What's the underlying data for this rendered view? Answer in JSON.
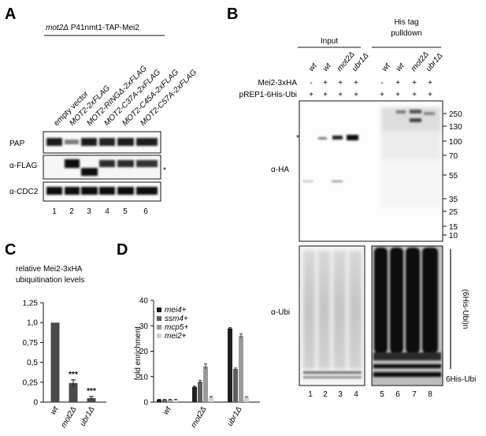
{
  "panels": {
    "A": {
      "letter": "A",
      "strain_genotype": "mot2Δ",
      "strain_construct": " P41nmt1-TAP-Mei2",
      "lanes": [
        "empty vector",
        "MOT2-2xFLAG",
        "MOT2-RINGΔ-2xFLAG",
        "MOT2-C37A-2xFLAG",
        "MOT2-C45A-2xFLAG",
        "MOT2-C57A-2xFLAG"
      ],
      "lane_numbers": [
        "1",
        "2",
        "3",
        "4",
        "5",
        "6"
      ],
      "blots": [
        {
          "label": "PAP"
        },
        {
          "label": "α-FLAG"
        },
        {
          "label": "α-CDC2"
        }
      ],
      "asterisk": "*"
    },
    "B": {
      "letter": "B",
      "group_input": "Input",
      "group_pulldown_line1": "His tag",
      "group_pulldown_line2": "pulldown",
      "lane_genotypes": [
        "wt",
        "wt",
        "mot2Δ",
        "ubr1Δ",
        "wt",
        "wt",
        "mot2Δ",
        "ubr1Δ"
      ],
      "rows": [
        {
          "label": "Mei2-3xHA",
          "marks": [
            "-",
            "+",
            "+",
            "+",
            "-",
            "+",
            "+",
            "+"
          ]
        },
        {
          "label": "pREP1-6His-Ubi",
          "marks": [
            "+",
            "+",
            "+",
            "+",
            "+",
            "+",
            "+",
            "+"
          ]
        }
      ],
      "ha_label": "α-HA",
      "ubi_label": "α-Ubi",
      "asterisk": "*",
      "mw_markers": [
        "250",
        "130",
        "100",
        "70",
        "55",
        "35",
        "25",
        "15",
        "10"
      ],
      "bracket_label": "(6His-Ubi)n",
      "free_ubi_label": "6His-Ubi",
      "lane_numbers": [
        "1",
        "2",
        "3",
        "4",
        "5",
        "6",
        "7",
        "8"
      ]
    },
    "C": {
      "letter": "C",
      "title_line1": "relative Mei2-3xHA",
      "title_line2": "ubiquitination levels",
      "significance": [
        "",
        "***",
        "***"
      ]
    },
    "D": {
      "letter": "D",
      "ylabel": "fold enrichment"
    }
  },
  "chart_data": [
    {
      "type": "bar",
      "panel": "C",
      "title": "relative Mei2-3xHA ubiquitination levels",
      "categories": [
        "wt",
        "mot2Δ",
        "ubr1Δ"
      ],
      "values": [
        1.0,
        0.24,
        0.05
      ],
      "errors": [
        0,
        0.04,
        0.02
      ],
      "yticks": [
        "0",
        "0,25",
        "0,5",
        "0,75",
        "1,0",
        "1,25"
      ],
      "ylim": [
        0,
        1.25
      ],
      "color": "#4a4a4a"
    },
    {
      "type": "bar",
      "panel": "D",
      "ylabel": "fold enrichment",
      "categories": [
        "wt",
        "mot2Δ",
        "ubr1Δ"
      ],
      "series": [
        {
          "name": "mei4+",
          "values": [
            1,
            6,
            29
          ],
          "errors": [
            0.1,
            0.3,
            0.3
          ],
          "color": "#1e1e1e"
        },
        {
          "name": "ssm4+",
          "values": [
            1,
            8,
            13
          ],
          "errors": [
            0.1,
            0.6,
            0.4
          ],
          "color": "#5e5e5e"
        },
        {
          "name": "mcp5+",
          "values": [
            1,
            14,
            26
          ],
          "errors": [
            0.1,
            1.0,
            0.8
          ],
          "color": "#9a9a9a"
        },
        {
          "name": "mei2+",
          "values": [
            1,
            2,
            2
          ],
          "errors": [
            0.1,
            0.2,
            0.1
          ],
          "color": "#cfcfcf"
        }
      ],
      "yticks": [
        "0",
        "10",
        "20",
        "30",
        "40"
      ],
      "ylim": [
        0,
        40
      ]
    }
  ]
}
